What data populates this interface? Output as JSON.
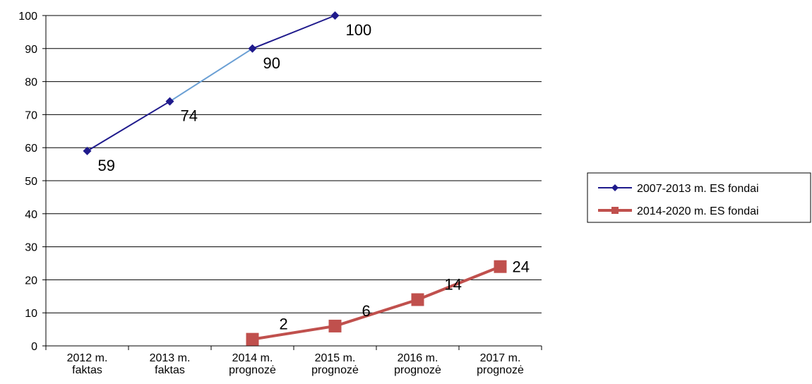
{
  "chart_data": {
    "type": "line",
    "title": "",
    "xlabel": "",
    "ylabel": "",
    "ylim": [
      0,
      100
    ],
    "yticks": [
      0,
      10,
      20,
      30,
      40,
      50,
      60,
      70,
      80,
      90,
      100
    ],
    "grid": true,
    "legend_position": "right",
    "categories": [
      [
        "2012 m.",
        "faktas"
      ],
      [
        "2013 m.",
        "faktas"
      ],
      [
        "2014 m.",
        "prognozė"
      ],
      [
        "2015 m.",
        "prognozė"
      ],
      [
        "2016 m.",
        "prognozė"
      ],
      [
        "2017 m.",
        "prognozė"
      ]
    ],
    "series": [
      {
        "name": "2007-2013 m. ES fondai",
        "values": [
          59,
          74,
          90,
          100,
          null,
          null
        ],
        "color": "#1f1a8c",
        "marker": "diamond"
      },
      {
        "name": "2014-2020 m. ES fondai",
        "values": [
          null,
          null,
          2,
          6,
          14,
          24
        ],
        "color": "#c0504d",
        "marker": "square"
      }
    ]
  }
}
